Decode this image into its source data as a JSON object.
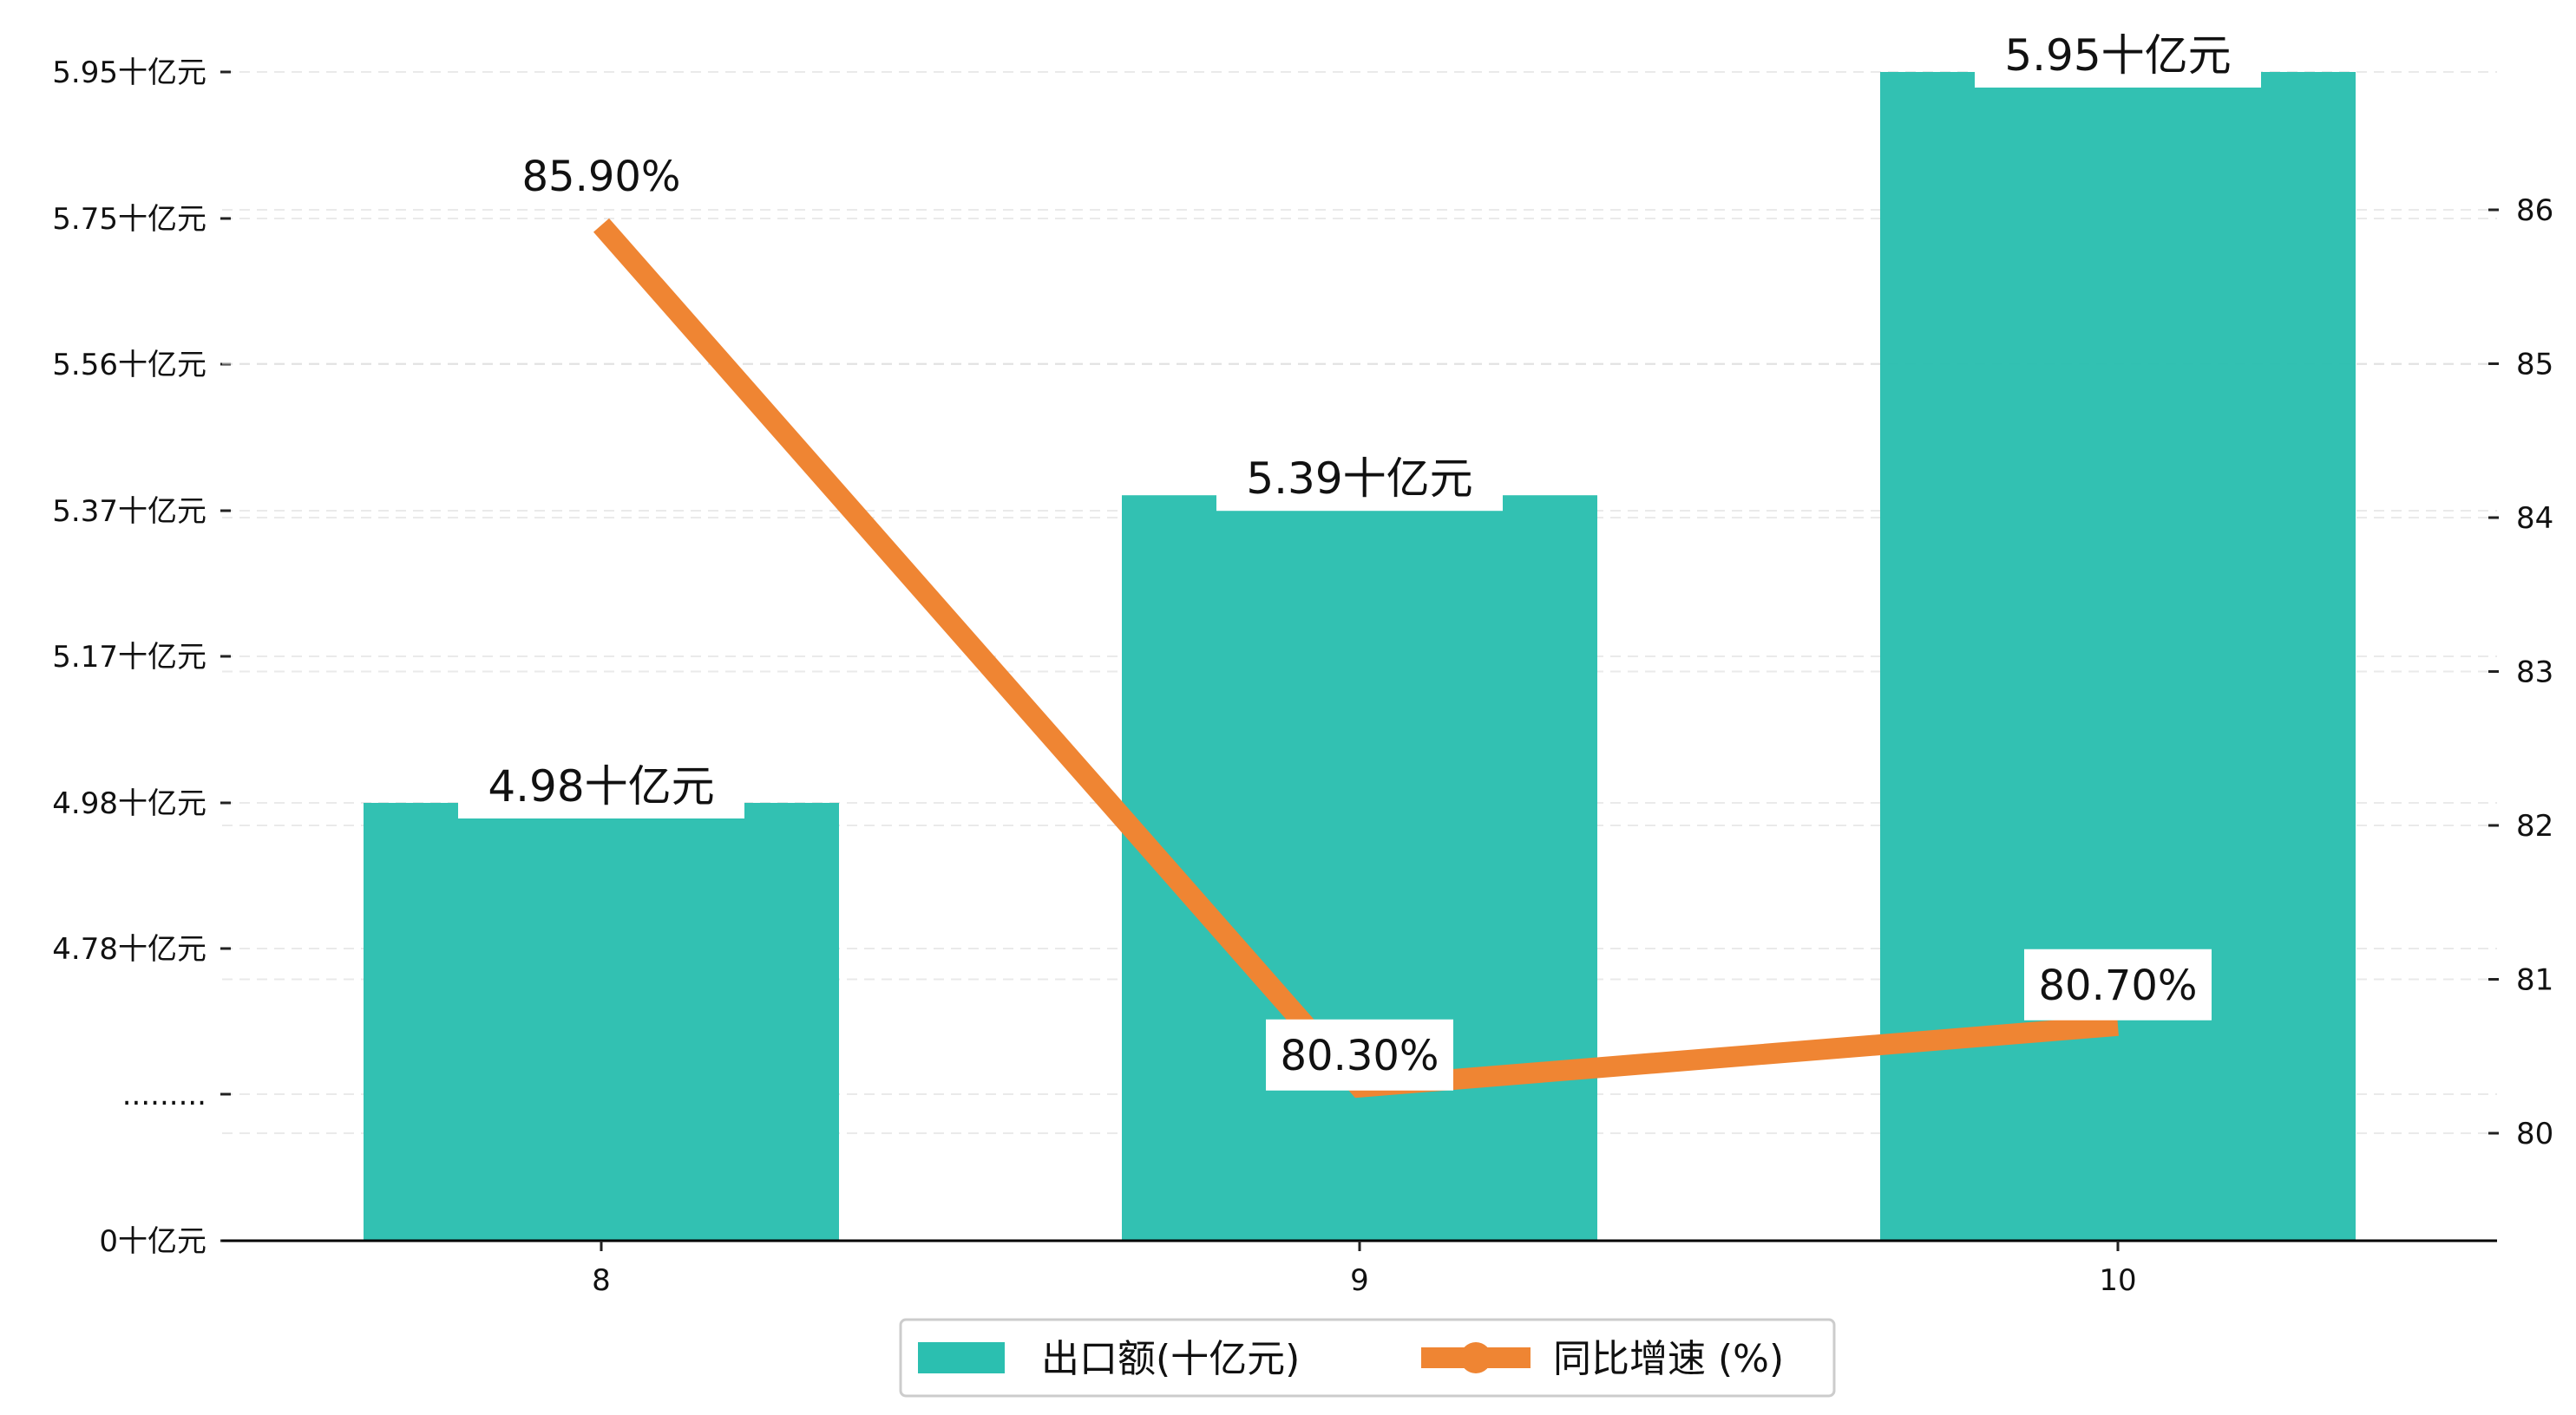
{
  "chart_data": {
    "type": "bar",
    "categories": [
      "8",
      "9",
      "10"
    ],
    "series": [
      {
        "name": "出口额(十亿元)",
        "type": "bar",
        "axis": "left",
        "values": [
          4.98,
          5.39,
          5.95
        ],
        "labels": [
          "4.98十亿元",
          "5.39十亿元",
          "5.95十亿元"
        ],
        "color": "#2bbfb0"
      },
      {
        "name": "同比增速 (%)",
        "type": "line",
        "axis": "right",
        "values": [
          85.9,
          80.3,
          80.7
        ],
        "labels": [
          "85.90%",
          "80.30%",
          "80.70%"
        ],
        "color": "#ef8533"
      }
    ],
    "left_axis": {
      "ticks": [
        {
          "value": 0,
          "label": "0十亿元"
        },
        {
          "value": 4.68,
          "label": "........."
        },
        {
          "value": 4.78,
          "label": "4.78十亿元"
        },
        {
          "value": 4.98,
          "label": "4.98十亿元"
        },
        {
          "value": 5.17,
          "label": "5.17十亿元"
        },
        {
          "value": 5.37,
          "label": "5.37十亿元"
        },
        {
          "value": 5.56,
          "label": "5.56十亿元"
        },
        {
          "value": 5.75,
          "label": "5.75十亿元"
        },
        {
          "value": 5.95,
          "label": "5.95十亿元"
        }
      ],
      "broken": true
    },
    "right_axis": {
      "ticks": [
        80,
        81,
        82,
        83,
        84,
        85,
        86
      ],
      "ylim": [
        79.3,
        87.6
      ]
    },
    "title": "",
    "xlabel": "",
    "ylabel": "",
    "grid": true,
    "legend_position": "bottom-center"
  }
}
